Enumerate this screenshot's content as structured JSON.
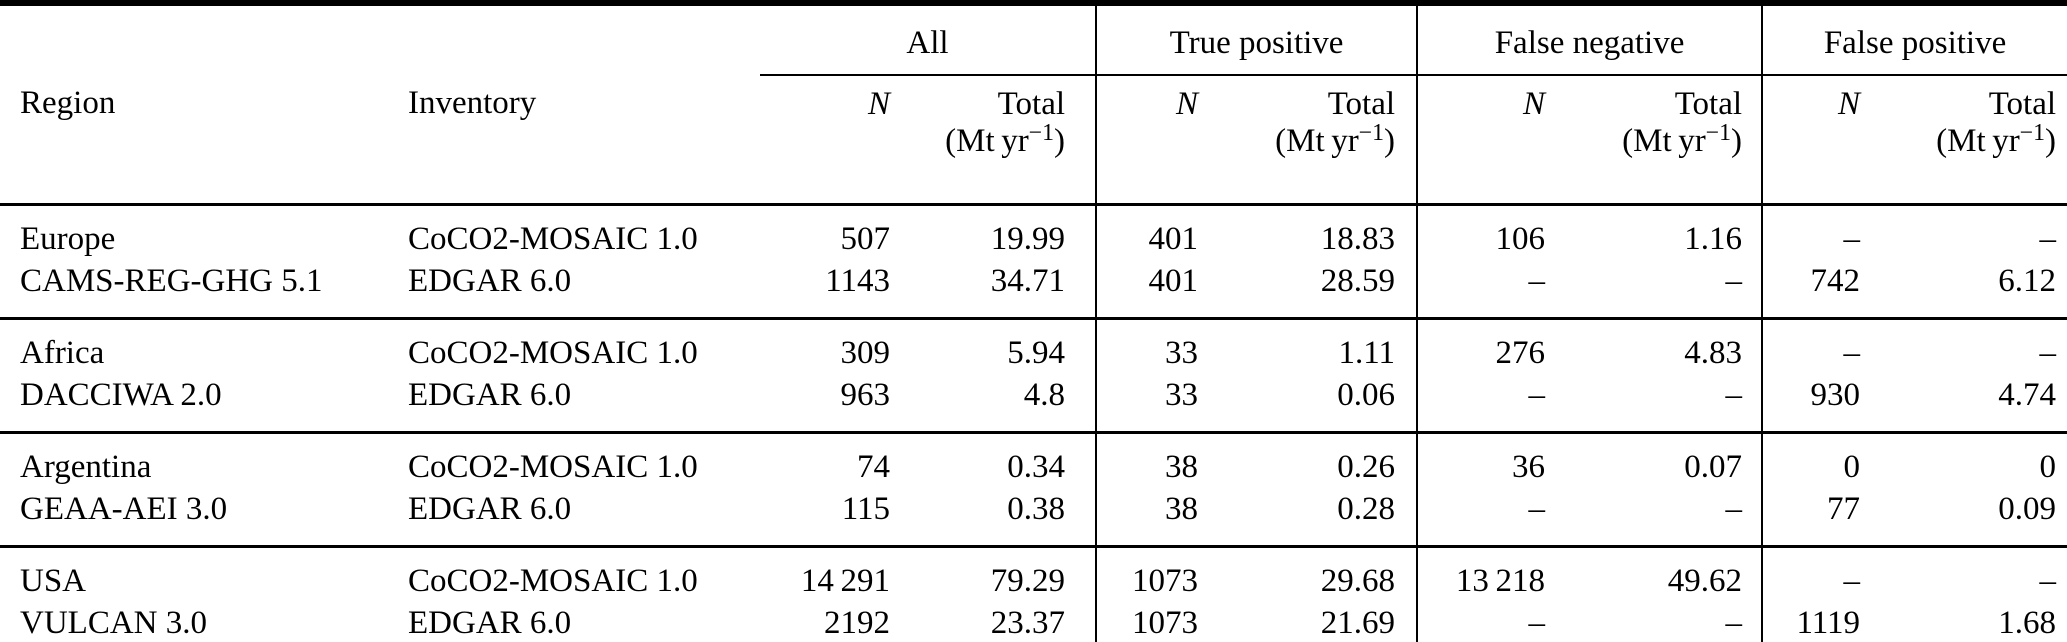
{
  "colors": {
    "text": "#000000",
    "background": "#ffffff",
    "rule": "#000000"
  },
  "table": {
    "headers": {
      "region": "Region",
      "inventory": "Inventory",
      "groups": [
        "All",
        "True positive",
        "False negative",
        "False positive"
      ],
      "n_label": "N",
      "total_label": "Total",
      "unit_prefix": "(Mt yr",
      "unit_exponent": "−1",
      "unit_suffix": ")"
    },
    "sections": [
      {
        "rows": [
          {
            "region": "Europe",
            "inventory": "CoCO2-MOSAIC 1.0",
            "values": [
              "507",
              "19.99",
              "401",
              "18.83",
              "106",
              "1.16",
              "–",
              "–"
            ]
          },
          {
            "region": "CAMS-REG-GHG 5.1",
            "inventory": "EDGAR 6.0",
            "values": [
              "1143",
              "34.71",
              "401",
              "28.59",
              "–",
              "–",
              "742",
              "6.12"
            ]
          }
        ]
      },
      {
        "rows": [
          {
            "region": "Africa",
            "inventory": "CoCO2-MOSAIC 1.0",
            "values": [
              "309",
              "5.94",
              "33",
              "1.11",
              "276",
              "4.83",
              "–",
              "–"
            ]
          },
          {
            "region": "DACCIWA 2.0",
            "inventory": "EDGAR 6.0",
            "values": [
              "963",
              "4.8",
              "33",
              "0.06",
              "–",
              "–",
              "930",
              "4.74"
            ]
          }
        ]
      },
      {
        "rows": [
          {
            "region": "Argentina",
            "inventory": "CoCO2-MOSAIC 1.0",
            "values": [
              "74",
              "0.34",
              "38",
              "0.26",
              "36",
              "0.07",
              "0",
              "0"
            ]
          },
          {
            "region": "GEAA-AEI 3.0",
            "inventory": "EDGAR 6.0",
            "values": [
              "115",
              "0.38",
              "38",
              "0.28",
              "–",
              "–",
              "77",
              "0.09"
            ]
          }
        ]
      },
      {
        "rows": [
          {
            "region": "USA",
            "inventory": "CoCO2-MOSAIC 1.0",
            "values": [
              "14 291",
              "79.29",
              "1073",
              "29.68",
              "13 218",
              "49.62",
              "–",
              "–"
            ]
          },
          {
            "region": "VULCAN 3.0",
            "inventory": "EDGAR 6.0",
            "values": [
              "2192",
              "23.37",
              "1073",
              "21.69",
              "–",
              "–",
              "1119",
              "1.68"
            ]
          }
        ]
      }
    ]
  }
}
